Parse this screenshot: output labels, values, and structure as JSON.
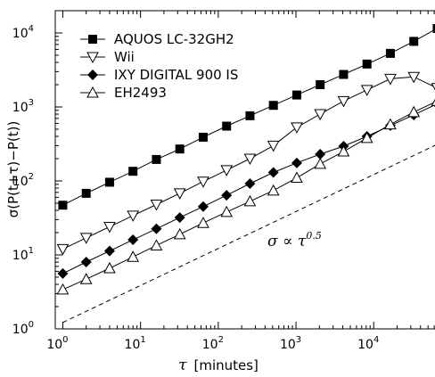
{
  "chart_data": {
    "type": "line",
    "xscale": "log",
    "yscale": "log",
    "xlim": [
      0.8,
      80000
    ],
    "ylim": [
      1,
      20000
    ],
    "x_ticks": [
      {
        "value": 1,
        "base": "10",
        "exp": "0"
      },
      {
        "value": 10,
        "base": "10",
        "exp": "1"
      },
      {
        "value": 100,
        "base": "10",
        "exp": "2"
      },
      {
        "value": 1000,
        "base": "10",
        "exp": "3"
      },
      {
        "value": 10000,
        "base": "10",
        "exp": "4"
      }
    ],
    "y_ticks": [
      {
        "value": 1,
        "base": "10",
        "exp": "0"
      },
      {
        "value": 10,
        "base": "10",
        "exp": "1"
      },
      {
        "value": 100,
        "base": "10",
        "exp": "2"
      },
      {
        "value": 1000,
        "base": "10",
        "exp": "3"
      },
      {
        "value": 10000,
        "base": "10",
        "exp": "4"
      }
    ],
    "xlabel_symbol": "τ",
    "xlabel_unit": "[minutes]",
    "ylabel": "σ(P(t+τ)−P(t))",
    "annotation": {
      "prefix": "σ ∝ τ",
      "exp": "0.5"
    },
    "legend_position": "top-left",
    "series": [
      {
        "name": "AQUOS LC-32GH2",
        "marker": "square-filled",
        "x": [
          1,
          2,
          4,
          8,
          16,
          32,
          64,
          128,
          256,
          512,
          1024,
          2048,
          4096,
          8192,
          16384,
          32768,
          65536
        ],
        "y": [
          47,
          68,
          96,
          135,
          195,
          270,
          390,
          550,
          760,
          1050,
          1450,
          2000,
          2750,
          3800,
          5300,
          7700,
          11500
        ]
      },
      {
        "name": "Wii",
        "marker": "triangle-down-open",
        "x": [
          1,
          2,
          4,
          8,
          16,
          32,
          64,
          128,
          256,
          512,
          1024,
          2048,
          4096,
          8192,
          16384,
          32768,
          65536
        ],
        "y": [
          12,
          17,
          24,
          34,
          48,
          68,
          98,
          140,
          200,
          300,
          530,
          800,
          1200,
          1700,
          2400,
          2550,
          1800
        ]
      },
      {
        "name": "IXY DIGITAL 900 IS",
        "marker": "diamond-filled",
        "x": [
          1,
          2,
          4,
          8,
          16,
          32,
          64,
          128,
          256,
          512,
          1024,
          2048,
          4096,
          8192,
          16384,
          32768,
          65536
        ],
        "y": [
          5.6,
          8,
          11.3,
          16,
          22.5,
          32,
          45,
          64,
          92,
          130,
          175,
          230,
          295,
          400,
          560,
          780,
          1100
        ]
      },
      {
        "name": "EH2493",
        "marker": "triangle-up-open",
        "x": [
          1,
          2,
          4,
          8,
          16,
          32,
          64,
          128,
          256,
          512,
          1024,
          2048,
          4096,
          8192,
          16384,
          32768,
          65536
        ],
        "y": [
          3.4,
          4.7,
          6.6,
          9.4,
          13.4,
          19,
          27,
          38,
          53,
          74,
          110,
          170,
          250,
          380,
          580,
          850,
          1200
        ]
      }
    ],
    "reference_line": {
      "style": "dashed",
      "x": [
        1,
        80000
      ],
      "y": [
        1.22,
        345
      ]
    }
  }
}
